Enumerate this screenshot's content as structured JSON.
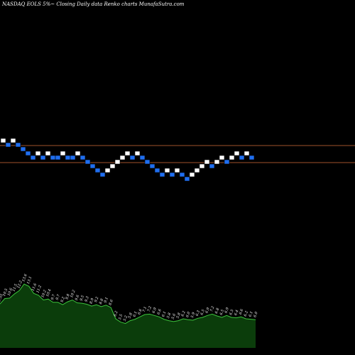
{
  "title": "NASDAQ EOLS 5%~  Closing Daily data  Renko  charts MunafaSutra.com",
  "chart_data": {
    "type": "renko",
    "brick_size_label": "5%",
    "colors": {
      "up": "#ffffff",
      "down": "#1f6ef0",
      "brick_border": "#000000",
      "level_line": "#a0522d",
      "volume_fill": "#0b3d0b",
      "volume_line": "#3cc43c",
      "background": "#000000"
    },
    "renko_rows": [
      2,
      1,
      2,
      1,
      0,
      -1,
      -2,
      -1,
      -2,
      -1,
      -2,
      -2,
      -1,
      -2,
      -2,
      -1,
      -2,
      -3,
      -4,
      -5,
      -6,
      -5,
      -4,
      -3,
      -2,
      -1,
      -2,
      -1,
      -2,
      -3,
      -4,
      -5,
      -6,
      -5,
      -6,
      -5,
      -6,
      -7,
      -6,
      -5,
      -4,
      -3,
      -4,
      -3,
      -2,
      -3,
      -2,
      -1,
      -2,
      -1,
      -2
    ],
    "renko_direction": [
      "up",
      "down",
      "up",
      "down",
      "down",
      "down",
      "down",
      "up",
      "down",
      "up",
      "down",
      "down",
      "up",
      "down",
      "down",
      "up",
      "down",
      "down",
      "down",
      "down",
      "down",
      "up",
      "up",
      "up",
      "up",
      "up",
      "down",
      "up",
      "down",
      "down",
      "down",
      "down",
      "down",
      "up",
      "down",
      "up",
      "down",
      "down",
      "up",
      "up",
      "up",
      "up",
      "down",
      "up",
      "up",
      "down",
      "up",
      "up",
      "down",
      "up",
      "down"
    ],
    "level_lines": [
      "upper",
      "lower"
    ],
    "volume": [
      9.35,
      10.5,
      10.6,
      11.5,
      12.2,
      13.6,
      13.1,
      11.6,
      11.2,
      10.2,
      10.4,
      9.7,
      9.7,
      9.2,
      9.8,
      10.2,
      9.6,
      9.5,
      9.3,
      8.9,
      9.2,
      8.8,
      9.1,
      8.6,
      6.2,
      5.5,
      5.2,
      5.8,
      6.1,
      6.6,
      7.1,
      7.2,
      6.9,
      6.6,
      6.1,
      5.8,
      5.6,
      5.8,
      6.2,
      6.0,
      5.9,
      6.3,
      6.5,
      6.9,
      7.2,
      6.8,
      6.5,
      6.9,
      6.5,
      6.4,
      6.6,
      6.2,
      6.1,
      6.0
    ],
    "volume_labels": [
      "9.35",
      "10.5",
      "10.6",
      "11.5",
      "12.2",
      "13.6",
      "13.1",
      "11.6",
      "11.2",
      "10.2",
      "10.4",
      "9.7",
      "9.7",
      "9.2",
      "9.8",
      "10.2",
      "9.6",
      "9.5",
      "9.3",
      "8.9",
      "9.2",
      "8.8",
      "9.1",
      "8.6",
      "6.2",
      "5.5",
      "5.2",
      "5.8",
      "6.1",
      "6.6",
      "7.1",
      "7.2",
      "6.9",
      "6.6",
      "6.1",
      "5.8",
      "5.6",
      "5.8",
      "6.2",
      "6.0",
      "5.9",
      "6.3",
      "6.5",
      "6.9",
      "7.2",
      "6.8",
      "6.5",
      "6.9",
      "6.5",
      "6.4",
      "6.6",
      "6.2",
      "6.1",
      "6.0"
    ]
  }
}
